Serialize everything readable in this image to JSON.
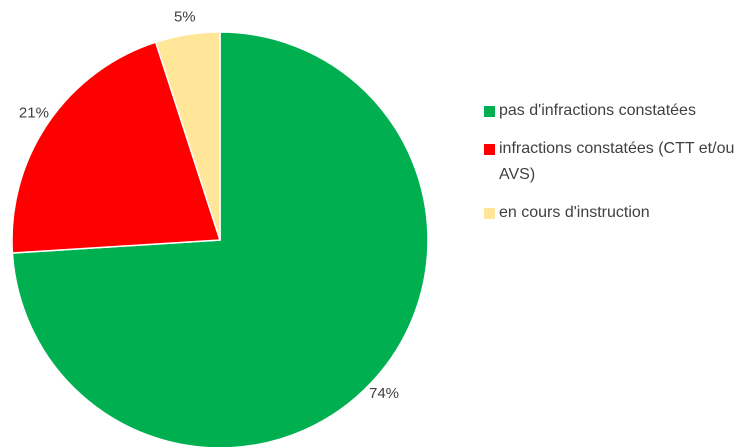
{
  "chart_data": {
    "type": "pie",
    "categories": [
      "pas d'infractions constatées",
      "infractions constatées (CTT et/ou AVS)",
      "en cours d'instruction"
    ],
    "values": [
      74,
      21,
      5
    ],
    "value_labels": [
      "74%",
      "21%",
      "5%"
    ],
    "colors": [
      "#00b050",
      "#ff0000",
      "#ffe699"
    ],
    "legend": "right"
  }
}
